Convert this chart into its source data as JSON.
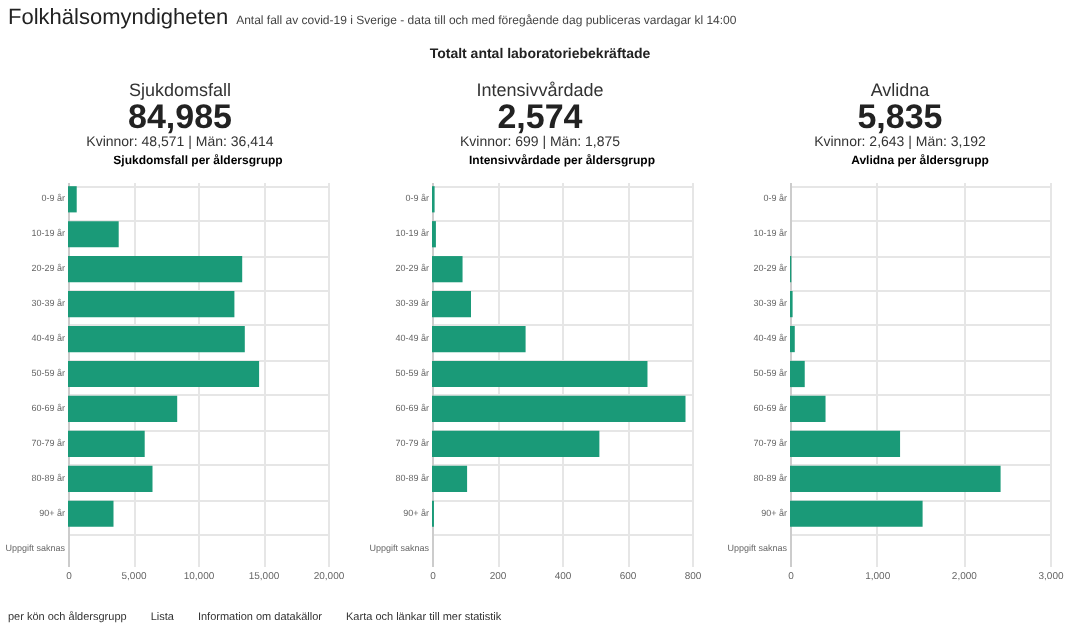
{
  "chart_data": [
    {
      "type": "other",
      "title": "Folkhälsomyndigheten",
      "subtitle": "Antal fall av covid-19 i Sverige - data till och med föregående dag publiceras vardagar kl 14:00",
      "annotations": [
        "Totalt antal laboratoriebekräftade",
        "per kön och åldersgrupp",
        "Lista",
        "Information om datakällor",
        "Karta och länkar till mer statistik"
      ]
    },
    {
      "type": "bar",
      "orientation": "horizontal",
      "title": "Sjukdomsfall per åldersgrupp",
      "annotations": [
        "Sjukdomsfall",
        "84,985",
        "Kvinnor: 48,571 | Män: 36,414"
      ],
      "categories": [
        "0-9 år",
        "10-19 år",
        "20-29 år",
        "30-39 år",
        "40-49 år",
        "50-59 år",
        "60-69 år",
        "70-79 år",
        "80-89 år",
        "90+ år",
        "Uppgift saknas"
      ],
      "values": [
        670,
        3900,
        13400,
        12800,
        13600,
        14700,
        8400,
        5900,
        6500,
        3500,
        0
      ],
      "color": "#1a9a78",
      "xlim": [
        0,
        20000
      ],
      "xticks": [
        0,
        {
          "value": 5000,
          "label": "5,000"
        },
        {
          "value": 10000,
          "label": "10,000"
        },
        {
          "value": 15000,
          "label": "15,000"
        },
        {
          "value": 20000,
          "label": "20,000"
        }
      ],
      "grid": true
    },
    {
      "type": "bar",
      "orientation": "horizontal",
      "title": "Intensivvårdade per åldersgrupp",
      "annotations": [
        "Intensivvårdade",
        "2,574",
        "Kvinnor: 699 | Män: 1,875"
      ],
      "categories": [
        "0-9 år",
        "10-19 år",
        "20-29 år",
        "30-39 år",
        "40-49 år",
        "50-59 år",
        "60-69 år",
        "70-79 år",
        "80-89 år",
        "90+ år",
        "Uppgift saknas"
      ],
      "values": [
        8,
        12,
        94,
        120,
        288,
        663,
        780,
        515,
        108,
        6,
        0
      ],
      "color": "#1a9a78",
      "xlim": [
        0,
        800
      ],
      "xticks": [
        0,
        200,
        400,
        600,
        800
      ],
      "grid": true
    },
    {
      "type": "bar",
      "orientation": "horizontal",
      "title": "Avlidna per åldersgrupp",
      "annotations": [
        "Avlidna",
        "5,835",
        "Kvinnor: 2,643 | Män: 3,192"
      ],
      "categories": [
        "0-9 år",
        "10-19 år",
        "20-29 år",
        "30-39 år",
        "40-49 år",
        "50-59 år",
        "60-69 år",
        "70-79 år",
        "80-89 år",
        "90+ år",
        "Uppgift saknas"
      ],
      "values": [
        0,
        0,
        15,
        30,
        55,
        170,
        410,
        1270,
        2430,
        1530,
        0
      ],
      "color": "#1a9a78",
      "xlim": [
        0,
        3000
      ],
      "xticks": [
        0,
        {
          "value": 1000,
          "label": "1,000"
        },
        {
          "value": 2000,
          "label": "2,000"
        },
        {
          "value": 3000,
          "label": "3,000"
        }
      ],
      "grid": true
    }
  ]
}
